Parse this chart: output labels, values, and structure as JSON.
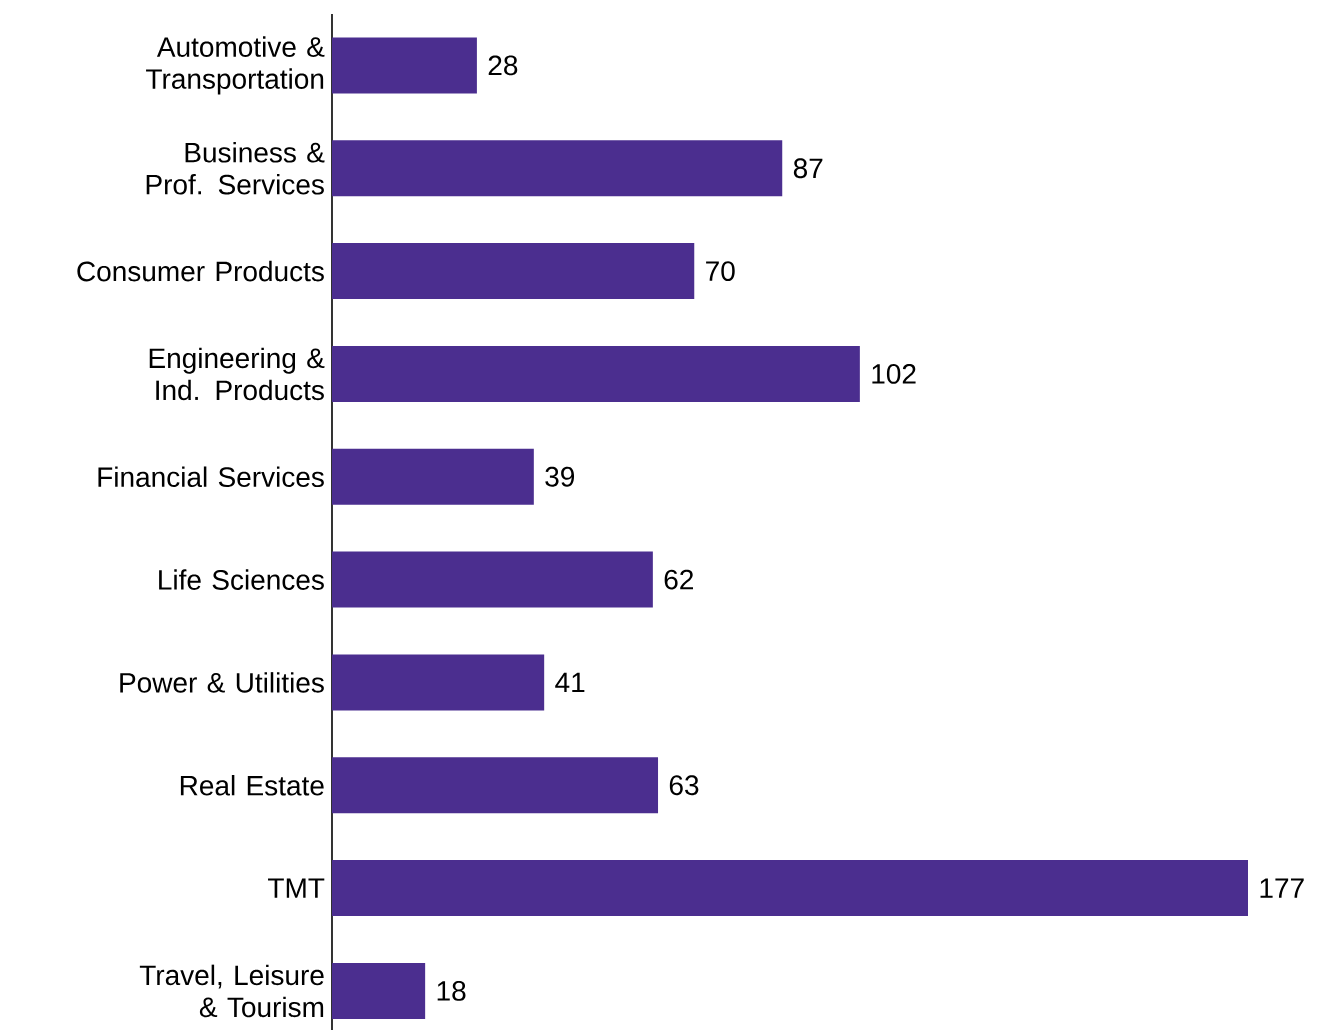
{
  "chart_data": {
    "type": "bar",
    "orientation": "horizontal",
    "data_labels": true,
    "color": "#4b2e8f",
    "categories": [
      "Automotive & Transportation",
      "Business & Prof. Services",
      "Consumer Products",
      "Engineering & Ind. Products",
      "Financial Services",
      "Life Sciences",
      "Power & Utilities",
      "Real Estate",
      "TMT",
      "Travel, Leisure & Tourism"
    ],
    "values": [
      28,
      87,
      70,
      102,
      39,
      62,
      41,
      63,
      177,
      18
    ]
  }
}
